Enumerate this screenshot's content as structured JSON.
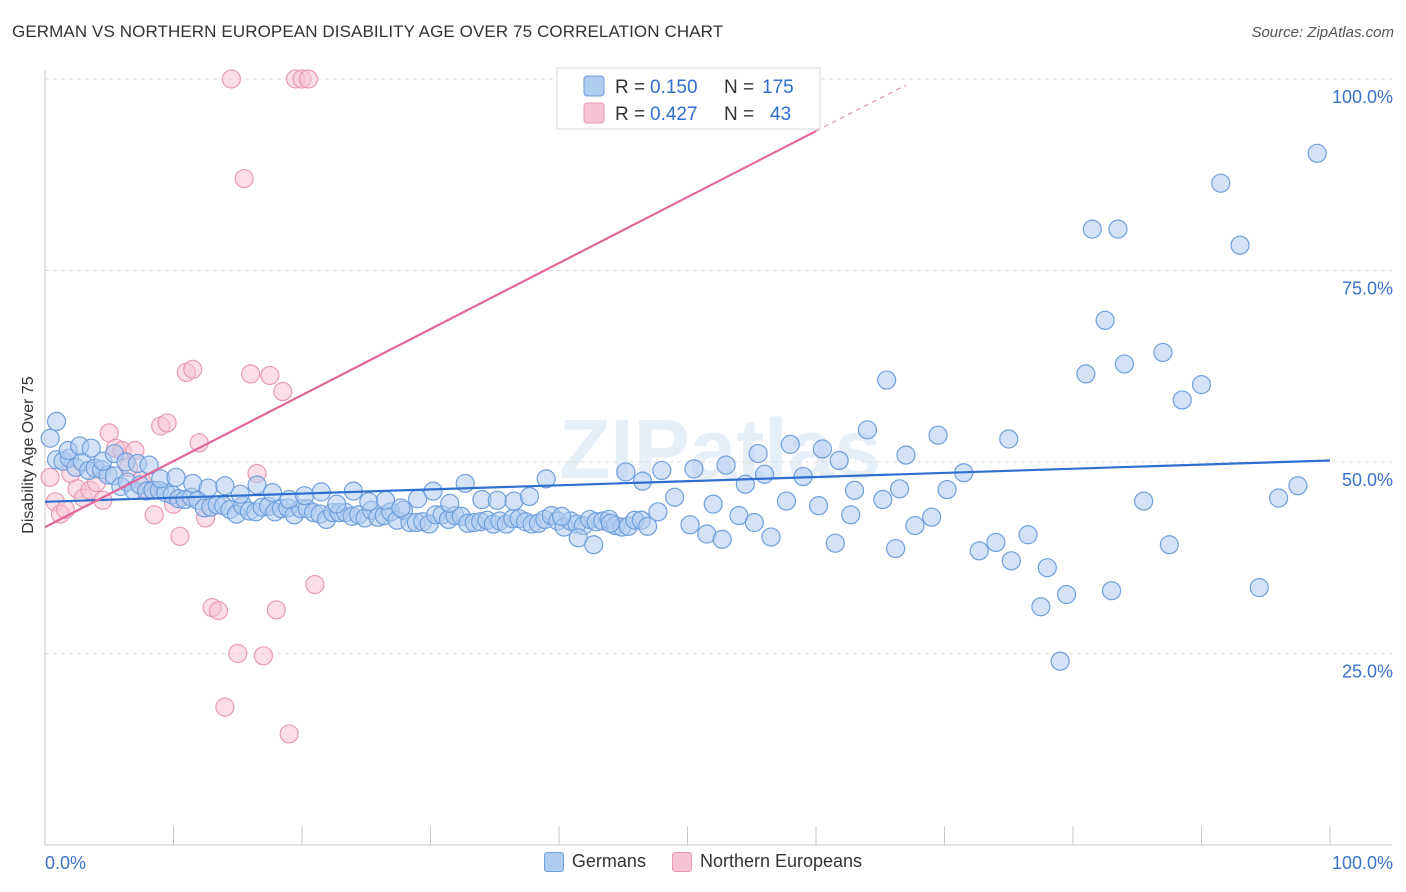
{
  "header": {
    "title": "GERMAN VS NORTHERN EUROPEAN DISABILITY AGE OVER 75 CORRELATION CHART",
    "source": "Source: ZipAtlas.com"
  },
  "watermark": "ZIPatlas",
  "colors": {
    "germans_fill": "#aecbf0",
    "germans_stroke": "#6f9fdc",
    "germans_line": "#2f6fcf",
    "northern_fill": "#f7c3d3",
    "northern_stroke": "#e89ab4",
    "northern_line": "#e0689a",
    "axis_text": "#3a72c9",
    "grid": "#dcdcdc"
  },
  "stats_legend": [
    {
      "r_label": "R =",
      "r_value": "0.150",
      "n_label": "N =",
      "n_value": "175"
    },
    {
      "r_label": "R =",
      "r_value": "0.427",
      "n_label": "N =",
      "n_value": "43"
    }
  ],
  "chart_data": {
    "type": "scatter",
    "title": "GERMAN VS NORTHERN EUROPEAN DISABILITY AGE OVER 75 CORRELATION CHART",
    "xlabel": "",
    "ylabel": "Disability Age Over 75",
    "xlim": [
      0,
      100
    ],
    "ylim": [
      0,
      102
    ],
    "x_tick_labels": [
      "0.0%",
      "100.0%"
    ],
    "y_tick_labels": [
      "25.0%",
      "50.0%",
      "75.0%",
      "100.0%"
    ],
    "y_ticks": [
      25,
      50,
      75,
      100
    ],
    "grid": true,
    "legend_position": "top-center",
    "series": [
      {
        "name": "Germans",
        "r": 0.15,
        "n": 175,
        "trend": {
          "x": [
            0,
            100
          ],
          "y": [
            44.8,
            50.2
          ]
        },
        "points": [
          [
            0.4,
            53.1
          ],
          [
            0.9,
            50.3
          ],
          [
            1.4,
            50.1
          ],
          [
            1.9,
            50.5
          ],
          [
            2.4,
            49.3
          ],
          [
            2.9,
            50.0
          ],
          [
            3.4,
            48.9
          ],
          [
            3.9,
            49.2
          ],
          [
            4.4,
            49.0
          ],
          [
            4.9,
            48.3
          ],
          [
            5.4,
            48.2
          ],
          [
            5.9,
            46.8
          ],
          [
            6.4,
            47.4
          ],
          [
            6.9,
            46.3
          ],
          [
            7.4,
            47.0
          ],
          [
            7.9,
            46.2
          ],
          [
            8.4,
            46.3
          ],
          [
            8.9,
            46.3
          ],
          [
            9.4,
            46.0
          ],
          [
            9.9,
            45.7
          ],
          [
            10.4,
            45.2
          ],
          [
            10.9,
            45.1
          ],
          [
            11.4,
            45.4
          ],
          [
            11.9,
            45.0
          ],
          [
            12.4,
            44.0
          ],
          [
            12.9,
            44.1
          ],
          [
            13.4,
            44.4
          ],
          [
            13.9,
            44.3
          ],
          [
            14.4,
            43.8
          ],
          [
            14.9,
            43.2
          ],
          [
            15.4,
            44.3
          ],
          [
            15.9,
            43.6
          ],
          [
            16.4,
            43.5
          ],
          [
            16.9,
            44.1
          ],
          [
            17.4,
            44.2
          ],
          [
            17.9,
            43.5
          ],
          [
            18.4,
            43.9
          ],
          [
            18.9,
            44.0
          ],
          [
            19.4,
            43.1
          ],
          [
            19.9,
            43.9
          ],
          [
            20.4,
            43.9
          ],
          [
            20.9,
            43.4
          ],
          [
            21.4,
            43.2
          ],
          [
            21.9,
            42.5
          ],
          [
            22.4,
            43.4
          ],
          [
            22.9,
            43.4
          ],
          [
            23.4,
            43.4
          ],
          [
            23.9,
            42.9
          ],
          [
            24.4,
            43.1
          ],
          [
            24.9,
            42.7
          ],
          [
            25.4,
            43.7
          ],
          [
            25.9,
            42.8
          ],
          [
            26.4,
            43.0
          ],
          [
            26.9,
            43.5
          ],
          [
            27.4,
            42.4
          ],
          [
            27.9,
            43.7
          ],
          [
            28.4,
            42.1
          ],
          [
            28.9,
            42.1
          ],
          [
            29.4,
            42.2
          ],
          [
            29.9,
            41.9
          ],
          [
            30.4,
            43.1
          ],
          [
            30.9,
            43.1
          ],
          [
            31.4,
            42.5
          ],
          [
            31.9,
            43.0
          ],
          [
            32.4,
            42.9
          ],
          [
            32.9,
            42.0
          ],
          [
            33.4,
            42.1
          ],
          [
            33.9,
            42.2
          ],
          [
            34.4,
            42.4
          ],
          [
            34.9,
            41.9
          ],
          [
            35.4,
            42.3
          ],
          [
            35.9,
            41.9
          ],
          [
            36.4,
            42.6
          ],
          [
            36.9,
            42.6
          ],
          [
            37.4,
            42.2
          ],
          [
            37.9,
            41.9
          ],
          [
            38.4,
            42.0
          ],
          [
            38.9,
            42.5
          ],
          [
            39.4,
            43.0
          ],
          [
            39.9,
            42.3
          ],
          [
            40.4,
            41.5
          ],
          [
            40.9,
            42.3
          ],
          [
            41.4,
            41.9
          ],
          [
            41.9,
            41.7
          ],
          [
            42.4,
            42.5
          ],
          [
            42.9,
            42.2
          ],
          [
            43.4,
            42.3
          ],
          [
            43.9,
            42.5
          ],
          [
            44.4,
            41.7
          ],
          [
            44.9,
            41.5
          ],
          [
            45.4,
            41.6
          ],
          [
            45.9,
            42.4
          ],
          [
            46.4,
            42.4
          ],
          [
            46.9,
            41.6
          ],
          [
            0.9,
            55.3
          ],
          [
            1.8,
            51.5
          ],
          [
            2.7,
            52.1
          ],
          [
            3.6,
            51.8
          ],
          [
            4.5,
            50.1
          ],
          [
            5.4,
            51.1
          ],
          [
            6.3,
            50.0
          ],
          [
            7.2,
            49.8
          ],
          [
            8.1,
            49.6
          ],
          [
            9.0,
            47.8
          ],
          [
            10.2,
            48.0
          ],
          [
            11.5,
            47.2
          ],
          [
            12.7,
            46.6
          ],
          [
            14.0,
            46.9
          ],
          [
            15.2,
            45.8
          ],
          [
            16.5,
            47.0
          ],
          [
            17.7,
            46.0
          ],
          [
            19.0,
            45.1
          ],
          [
            20.2,
            45.6
          ],
          [
            21.5,
            46.1
          ],
          [
            22.7,
            44.5
          ],
          [
            24.0,
            46.2
          ],
          [
            25.2,
            44.8
          ],
          [
            26.5,
            45.0
          ],
          [
            27.7,
            44.0
          ],
          [
            29.0,
            45.2
          ],
          [
            30.2,
            46.2
          ],
          [
            31.5,
            44.6
          ],
          [
            32.7,
            47.2
          ],
          [
            34.0,
            45.1
          ],
          [
            35.2,
            45.0
          ],
          [
            36.5,
            44.9
          ],
          [
            37.7,
            45.5
          ],
          [
            39.0,
            47.8
          ],
          [
            40.2,
            42.9
          ],
          [
            41.5,
            40.1
          ],
          [
            42.7,
            39.2
          ],
          [
            44.0,
            42.0
          ],
          [
            45.2,
            48.7
          ],
          [
            46.5,
            47.5
          ],
          [
            47.7,
            43.5
          ],
          [
            49.0,
            45.4
          ],
          [
            50.2,
            41.8
          ],
          [
            51.5,
            40.6
          ],
          [
            52.7,
            39.9
          ],
          [
            54.0,
            43.0
          ],
          [
            55.2,
            42.1
          ],
          [
            56.5,
            40.2
          ],
          [
            57.7,
            44.9
          ],
          [
            59.0,
            48.1
          ],
          [
            60.2,
            44.3
          ],
          [
            61.5,
            39.4
          ],
          [
            62.7,
            43.1
          ],
          [
            64.0,
            54.2
          ],
          [
            65.2,
            45.1
          ],
          [
            66.5,
            46.5
          ],
          [
            67.7,
            41.7
          ],
          [
            69.0,
            42.8
          ],
          [
            70.2,
            46.4
          ],
          [
            71.5,
            48.6
          ],
          [
            72.7,
            38.4
          ],
          [
            74.0,
            39.5
          ],
          [
            75.2,
            37.1
          ],
          [
            76.5,
            40.5
          ],
          [
            78.0,
            36.2
          ],
          [
            79.5,
            32.7
          ],
          [
            81.0,
            61.5
          ],
          [
            82.5,
            68.5
          ],
          [
            84.0,
            62.8
          ],
          [
            85.5,
            44.9
          ],
          [
            87.0,
            64.3
          ],
          [
            88.5,
            58.1
          ],
          [
            90.0,
            60.1
          ],
          [
            91.5,
            86.4
          ],
          [
            93.0,
            78.3
          ],
          [
            94.5,
            33.6
          ],
          [
            96.0,
            45.3
          ],
          [
            97.5,
            46.9
          ],
          [
            99.0,
            90.3
          ],
          [
            83.5,
            80.4
          ],
          [
            81.5,
            80.4
          ],
          [
            83.0,
            33.2
          ],
          [
            87.5,
            39.2
          ],
          [
            79.0,
            24.0
          ],
          [
            77.5,
            31.1
          ],
          [
            75.0,
            53.0
          ],
          [
            69.5,
            53.5
          ],
          [
            65.5,
            60.7
          ],
          [
            67.0,
            50.9
          ],
          [
            61.8,
            50.2
          ],
          [
            63.0,
            46.3
          ],
          [
            60.5,
            51.7
          ],
          [
            58.0,
            52.3
          ],
          [
            55.5,
            51.1
          ],
          [
            54.5,
            47.1
          ],
          [
            56.0,
            48.4
          ],
          [
            53.0,
            49.6
          ],
          [
            50.5,
            49.1
          ],
          [
            48.0,
            48.9
          ],
          [
            52.0,
            44.5
          ],
          [
            66.2,
            38.7
          ]
        ]
      },
      {
        "name": "Northern Europeans",
        "r": 0.427,
        "n": 43,
        "trend": {
          "x": [
            0,
            60
          ],
          "y": [
            41.5,
            93.2
          ]
        },
        "trend_dashed": {
          "x": [
            60,
            67
          ],
          "y": [
            93.2,
            99.2
          ]
        },
        "points": [
          [
            0.4,
            48.0
          ],
          [
            0.8,
            44.8
          ],
          [
            1.2,
            43.2
          ],
          [
            1.6,
            43.8
          ],
          [
            2.0,
            48.5
          ],
          [
            2.5,
            46.5
          ],
          [
            3.0,
            45.3
          ],
          [
            3.5,
            46.3
          ],
          [
            4.0,
            47.3
          ],
          [
            4.5,
            45.0
          ],
          [
            5.0,
            53.8
          ],
          [
            5.5,
            51.8
          ],
          [
            6.0,
            51.5
          ],
          [
            6.5,
            49.3
          ],
          [
            7.0,
            51.5
          ],
          [
            7.5,
            47.6
          ],
          [
            8.0,
            46.3
          ],
          [
            8.5,
            43.1
          ],
          [
            9.0,
            54.7
          ],
          [
            9.5,
            55.1
          ],
          [
            10.0,
            44.5
          ],
          [
            10.5,
            40.3
          ],
          [
            11.0,
            61.7
          ],
          [
            11.5,
            62.1
          ],
          [
            12.0,
            52.5
          ],
          [
            12.5,
            42.7
          ],
          [
            13.0,
            31.0
          ],
          [
            13.5,
            30.6
          ],
          [
            14.0,
            18.0
          ],
          [
            14.5,
            100.0
          ],
          [
            15.0,
            25.0
          ],
          [
            15.5,
            87.0
          ],
          [
            16.0,
            61.5
          ],
          [
            16.5,
            48.5
          ],
          [
            17.0,
            24.7
          ],
          [
            17.5,
            61.3
          ],
          [
            18.0,
            30.7
          ],
          [
            18.5,
            59.2
          ],
          [
            19.0,
            14.5
          ],
          [
            19.5,
            100.0
          ],
          [
            20.0,
            100.0
          ],
          [
            20.5,
            100.0
          ],
          [
            21.0,
            34.0
          ]
        ]
      }
    ]
  },
  "bottom_legend": [
    {
      "label": "Germans"
    },
    {
      "label": "Northern Europeans"
    }
  ]
}
